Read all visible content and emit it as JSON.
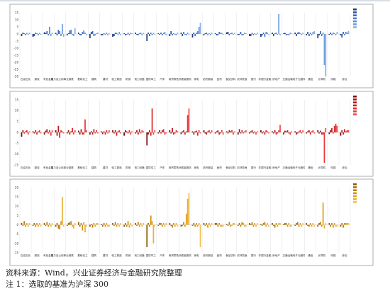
{
  "notes": {
    "source": "资料来源：Wind，兴业证券经济与金融研究院整理",
    "footnote": "注 1：选取的基准为沪深 300"
  },
  "chart_data": [
    {
      "type": "bar",
      "title": "",
      "ylim": [
        -30,
        15
      ],
      "yticks": [
        15,
        10,
        5,
        0,
        -5,
        -10,
        -15,
        -20,
        -25,
        -30
      ],
      "grid": "vertical",
      "legend": "top-right",
      "colors": [
        "#1f3d7a",
        "#2a5298",
        "#3a6cc0",
        "#4a80d0",
        "#5b8fd8",
        "#6d9ee0",
        "#86b2ea"
      ],
      "categories": [
        "石油石化",
        "煤炭",
        "有色金属",
        "电力及公用事业",
        "钢铁",
        "基础化工",
        "建筑",
        "建材",
        "轻工制造",
        "机械",
        "电力设备",
        "国防军工",
        "汽车",
        "商贸零售",
        "消费者服务",
        "家电",
        "纺织服装",
        "医药",
        "食品饮料",
        "农林牧渔",
        "银行",
        "非银行金融",
        "房地产",
        "交通运输",
        "电子元器件",
        "通信",
        "计算机",
        "传媒",
        "综合"
      ],
      "series": [
        {
          "values": [
            -1.5,
            -2.0,
            1.2,
            0.8,
            -1.0,
            1.0,
            -3.0,
            -1.0,
            -2.0,
            0.5,
            1.0,
            -5.0,
            0.5,
            -1.5,
            1.0,
            -2.5,
            -1.0,
            0.5,
            1.2,
            -0.8,
            -1.5,
            -2.0,
            1.0,
            0.5,
            1.0,
            -1.0,
            -3.0,
            -0.5,
            -1.0
          ]
        },
        {
          "values": [
            1.0,
            -1.5,
            0.8,
            -1.0,
            0.5,
            -0.8,
            1.5,
            -0.8,
            -1.5,
            -1.0,
            -0.5,
            1.0,
            -0.5,
            2.0,
            -1.5,
            1.0,
            0.5,
            -1.0,
            1.5,
            -0.5,
            -1.5,
            -1.0,
            -1.5,
            0.8,
            -1.5,
            1.5,
            -1.0,
            1.0,
            -2.5
          ]
        },
        {
          "values": [
            0.5,
            1.0,
            2.0,
            3.0,
            2.5,
            -1.0,
            2.0,
            0.5,
            1.0,
            -0.5,
            -1.0,
            -1.5,
            1.0,
            -1.0,
            1.5,
            -1.5,
            1.0,
            -1.0,
            -1.0,
            1.5,
            0.8,
            1.0,
            0.5,
            -1.0,
            1.0,
            -1.5,
            2.0,
            -0.8,
            1.5
          ]
        },
        {
          "values": [
            -1.0,
            0.5,
            -1.0,
            2.0,
            3.0,
            1.5,
            -1.5,
            -0.5,
            0.8,
            1.0,
            0.5,
            1.0,
            -1.0,
            0.5,
            -0.5,
            1.0,
            -0.8,
            1.5,
            0.5,
            -1.0,
            -1.0,
            -2.0,
            1.0,
            -0.5,
            1.5,
            1.0,
            -1.5,
            1.0,
            -1.0
          ]
        },
        {
          "values": [
            0.8,
            -1.0,
            5.0,
            -1.5,
            -0.8,
            2.5,
            -1.0,
            1.0,
            -0.5,
            -1.0,
            1.0,
            -1.0,
            0.8,
            -0.5,
            -1.0,
            2.0,
            0.5,
            1.0,
            1.0,
            -0.8,
            0.5,
            1.5,
            -0.5,
            -1.0,
            0.5,
            -1.0,
            1.0,
            0.5,
            1.5
          ]
        },
        {
          "values": [
            -0.5,
            0.8,
            -1.5,
            7.0,
            -1.5,
            1.0,
            0.5,
            -1.0,
            1.5,
            1.0,
            -1.0,
            0.8,
            1.5,
            -1.0,
            1.0,
            5.0,
            -1.0,
            0.8,
            -0.5,
            1.0,
            -0.5,
            1.0,
            14.0,
            1.0,
            -0.8,
            1.5,
            -22.0,
            -1.0,
            1.0
          ]
        },
        {
          "values": [
            1.0,
            -0.5,
            1.0,
            -2.0,
            4.0,
            -1.0,
            1.0,
            0.5,
            -1.0,
            0.5,
            0.8,
            -0.5,
            -1.0,
            1.0,
            -0.5,
            8.0,
            1.0,
            -0.5,
            0.8,
            0.5,
            1.0,
            -0.5,
            -1.0,
            0.5,
            1.0,
            2.0,
            -30.0,
            1.5,
            2.0
          ]
        }
      ]
    },
    {
      "type": "bar",
      "title": "",
      "ylim": [
        -15,
        15
      ],
      "yticks": [
        15,
        10,
        5,
        0,
        -5,
        -10,
        -15
      ],
      "grid": "vertical",
      "legend": "top-right",
      "colors": [
        "#7a0c0c",
        "#9b1111",
        "#b81818",
        "#cc1f1f",
        "#dd2a2a",
        "#e83838",
        "#f04a4a"
      ],
      "categories": [
        "石油石化",
        "煤炭",
        "有色金属",
        "电力及公用事业",
        "钢铁",
        "基础化工",
        "建筑",
        "建材",
        "轻工制造",
        "机械",
        "电力设备",
        "国防军工",
        "汽车",
        "商贸零售",
        "消费者服务",
        "家电",
        "纺织服装",
        "医药",
        "食品饮料",
        "农林牧渔",
        "银行",
        "非银行金融",
        "房地产",
        "交通运输",
        "电子元器件",
        "通信",
        "计算机",
        "传媒",
        "综合"
      ],
      "series": [
        {
          "values": [
            -2.0,
            0.5,
            -1.0,
            1.0,
            -0.5,
            0.8,
            -1.0,
            0.5,
            1.0,
            -1.5,
            -0.5,
            -6.0,
            -0.5,
            1.0,
            -0.8,
            0.5,
            1.0,
            -0.5,
            0.5,
            -1.0,
            -0.5,
            1.0,
            0.5,
            -1.0,
            0.5,
            -0.5,
            1.0,
            -0.8,
            -1.5
          ]
        },
        {
          "values": [
            1.0,
            -0.5,
            0.8,
            -1.5,
            1.0,
            -1.0,
            0.5,
            -0.8,
            -0.5,
            1.0,
            1.0,
            -1.0,
            1.0,
            -0.5,
            0.5,
            -1.0,
            -0.5,
            0.5,
            -0.5,
            1.5,
            0.5,
            -0.5,
            -0.5,
            0.8,
            -1.0,
            0.5,
            -0.5,
            1.0,
            1.0
          ]
        },
        {
          "values": [
            -0.5,
            1.0,
            1.5,
            3.0,
            -1.0,
            1.5,
            -1.0,
            0.5,
            1.0,
            0.5,
            -1.0,
            1.0,
            -0.5,
            2.0,
            1.0,
            0.5,
            -1.0,
            1.0,
            1.0,
            -0.5,
            1.0,
            0.5,
            1.0,
            0.5,
            -0.5,
            1.0,
            0.8,
            2.0,
            -1.0
          ]
        },
        {
          "values": [
            0.5,
            -1.0,
            -0.5,
            -2.5,
            0.5,
            -1.0,
            1.5,
            -1.0,
            -1.5,
            -0.5,
            1.5,
            -1.5,
            1.0,
            -1.0,
            -1.0,
            0.8,
            0.5,
            -1.0,
            0.5,
            1.0,
            -0.5,
            -1.0,
            -1.0,
            1.0,
            0.5,
            -1.0,
            -1.0,
            -0.5,
            1.5
          ]
        },
        {
          "values": [
            1.0,
            0.5,
            1.0,
            1.0,
            2.0,
            -1.0,
            -0.5,
            1.0,
            0.5,
            1.0,
            -0.5,
            11.0,
            1.5,
            -0.5,
            0.5,
            -1.5,
            1.0,
            -0.5,
            1.0,
            -0.5,
            0.5,
            1.0,
            -0.5,
            -0.5,
            1.0,
            0.5,
            -1.0,
            3.0,
            0.5
          ]
        },
        {
          "values": [
            -1.0,
            1.0,
            -1.5,
            0.5,
            -1.0,
            6.0,
            1.0,
            -0.5,
            1.0,
            -1.0,
            1.0,
            -1.0,
            -1.0,
            1.0,
            8.0,
            1.0,
            -0.5,
            1.0,
            -1.0,
            0.5,
            -1.0,
            0.5,
            1.0,
            -1.0,
            -0.5,
            1.0,
            -14.0,
            4.0,
            1.0
          ]
        },
        {
          "values": [
            0.5,
            -0.5,
            1.0,
            -0.5,
            1.0,
            1.0,
            -0.5,
            1.0,
            -0.5,
            0.5,
            0.5,
            1.0,
            -0.5,
            0.5,
            11.0,
            -0.5,
            1.0,
            -1.0,
            0.5,
            1.0,
            0.5,
            -0.5,
            3.5,
            0.5,
            1.0,
            -0.5,
            2.0,
            3.0,
            1.0
          ]
        }
      ]
    },
    {
      "type": "bar",
      "title": "",
      "ylim": [
        -15,
        20
      ],
      "yticks": [
        20,
        15,
        10,
        5,
        0,
        -5,
        -10,
        -15
      ],
      "grid": "vertical",
      "legend": "top-right",
      "colors": [
        "#8a5a00",
        "#a86c00",
        "#c07d00",
        "#d48e0a",
        "#e0a020",
        "#e8b03a",
        "#f0c050"
      ],
      "categories": [
        "石油石化",
        "煤炭",
        "有色金属",
        "电力及公用事业",
        "钢铁",
        "基础化工",
        "建筑",
        "建材",
        "轻工制造",
        "机械",
        "电力设备",
        "国防军工",
        "汽车",
        "商贸零售",
        "消费者服务",
        "家电",
        "纺织服装",
        "医药",
        "食品饮料",
        "农林牧渔",
        "银行",
        "非银行金融",
        "房地产",
        "交通运输",
        "电子元器件",
        "通信",
        "计算机",
        "传媒",
        "综合"
      ],
      "series": [
        {
          "values": [
            1.0,
            -0.5,
            1.0,
            -1.0,
            -0.5,
            1.5,
            -1.0,
            0.5,
            1.0,
            -1.0,
            1.0,
            -12.0,
            -0.5,
            1.0,
            -1.0,
            -0.5,
            1.0,
            1.0,
            0.5,
            -0.5,
            1.0,
            0.5,
            1.0,
            0.5,
            -0.5,
            1.0,
            -1.0,
            1.0,
            -1.0
          ]
        },
        {
          "values": [
            -0.5,
            1.0,
            -0.5,
            1.0,
            1.0,
            -1.0,
            0.5,
            -1.0,
            -0.5,
            1.0,
            -0.5,
            1.0,
            1.0,
            -0.5,
            -0.5,
            1.0,
            -0.5,
            1.0,
            -0.5,
            1.0,
            0.5,
            -0.5,
            -0.5,
            1.0,
            1.0,
            -0.5,
            1.0,
            -1.0,
            1.0
          ]
        },
        {
          "values": [
            2.0,
            -1.0,
            1.5,
            -2.0,
            1.5,
            1.0,
            -1.5,
            1.0,
            1.5,
            -1.0,
            1.5,
            -1.0,
            1.0,
            -1.5,
            1.5,
            -1.0,
            1.0,
            -1.0,
            1.5,
            -1.0,
            1.5,
            1.0,
            -1.5,
            1.0,
            1.5,
            -1.0,
            1.5,
            1.0,
            -1.5
          ]
        },
        {
          "values": [
            -1.0,
            1.0,
            -1.0,
            -2.5,
            2.0,
            -3.0,
            1.0,
            -1.0,
            -1.0,
            2.0,
            -1.0,
            5.0,
            -1.0,
            1.0,
            -1.0,
            1.0,
            -1.5,
            1.0,
            -1.0,
            1.5,
            -1.0,
            1.5,
            1.0,
            -1.0,
            -1.0,
            1.0,
            -1.0,
            -1.5,
            1.0
          ]
        },
        {
          "values": [
            1.0,
            -1.0,
            1.0,
            2.0,
            -1.0,
            1.5,
            -1.0,
            1.0,
            1.0,
            -1.5,
            1.0,
            2.0,
            1.0,
            -1.0,
            6.0,
            -1.0,
            1.0,
            -1.0,
            -0.5,
            1.0,
            1.0,
            -1.0,
            -1.0,
            1.0,
            1.0,
            -1.0,
            12.0,
            1.0,
            1.0
          ]
        },
        {
          "values": [
            -1.0,
            1.0,
            -1.0,
            15.0,
            -2.0,
            -4.0,
            1.0,
            -1.0,
            -1.0,
            1.0,
            -1.0,
            -10.0,
            -1.0,
            1.0,
            14.0,
            1.0,
            -1.0,
            -1.0,
            1.0,
            -1.0,
            -1.0,
            1.0,
            1.0,
            -1.0,
            -1.0,
            1.0,
            -2.0,
            -1.0,
            1.0
          ]
        },
        {
          "values": [
            1.0,
            -1.0,
            1.0,
            -1.0,
            1.0,
            -1.0,
            1.0,
            -1.0,
            1.0,
            -1.0,
            1.0,
            -1.0,
            1.0,
            -1.0,
            17.0,
            -12.0,
            1.0,
            -1.0,
            1.0,
            -1.0,
            1.0,
            -1.0,
            1.0,
            -1.0,
            1.0,
            -1.0,
            1.0,
            -1.0,
            1.0
          ]
        }
      ]
    }
  ]
}
